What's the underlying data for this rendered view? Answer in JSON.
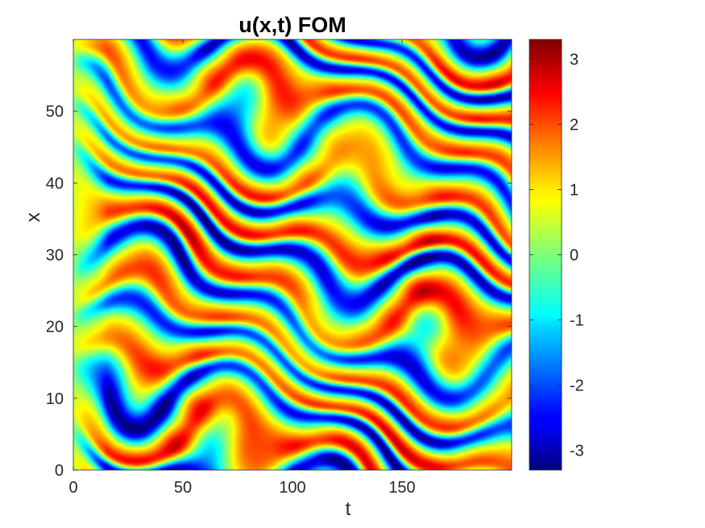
{
  "chart_data": {
    "type": "heatmap",
    "title": "u(x,t) FOM",
    "xlabel": "t",
    "ylabel": "x",
    "xlim": [
      0,
      200
    ],
    "ylim": [
      0,
      60
    ],
    "x_ticks": [
      0,
      50,
      100,
      150
    ],
    "x_tick_labels": [
      "0",
      "50",
      "100",
      "150"
    ],
    "y_ticks": [
      0,
      10,
      20,
      30,
      40,
      50
    ],
    "y_tick_labels": [
      "0",
      "10",
      "20",
      "30",
      "40",
      "50"
    ],
    "colormap": "jet",
    "clim": [
      -3.3,
      3.3
    ],
    "colorbar": {
      "placement": "right",
      "ticks": [
        -3,
        -2,
        -1,
        0,
        1,
        2,
        3
      ],
      "tick_labels": [
        "-3",
        "-2",
        "-1",
        "0",
        "1",
        "2",
        "3"
      ]
    },
    "value_range": {
      "min": -3.3,
      "max": 3.3
    },
    "pattern": "Kuramoto-Sivashinsky-like travelling stripes; value u(x,t) in roughly [-3.3, 3.3]"
  }
}
